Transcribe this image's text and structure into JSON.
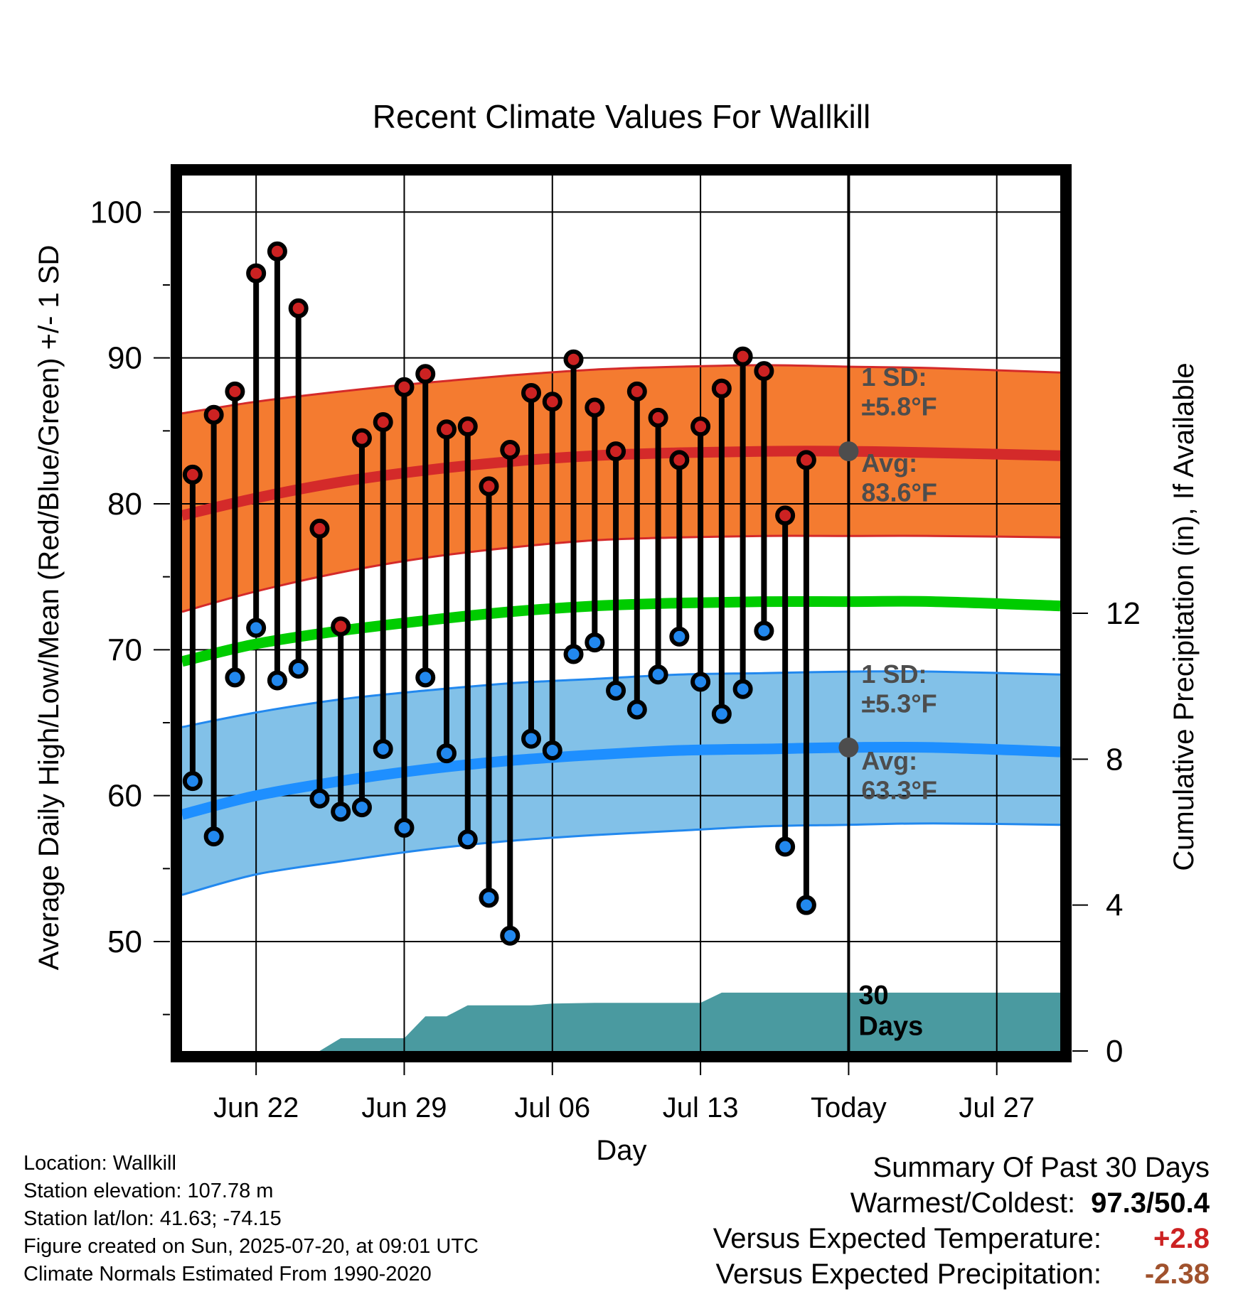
{
  "title": "Recent Climate Values For Wallkill",
  "colors": {
    "high_band_fill": "#f47b30",
    "high_band_edge": "#d42a2a",
    "high_avg_line": "#d42a2a",
    "mean_line": "#00cc00",
    "low_band_fill": "#82c1e8",
    "low_band_edge": "#2288ee",
    "low_avg_line": "#1e8fff",
    "high_marker": "#cc2222",
    "low_marker": "#2288ee",
    "precip_fill": "#4a9aa0",
    "avg_marker": "#4d4d4d",
    "annotation_text": "#4d4d4d",
    "temp_anomaly": "#cc2222",
    "precip_anomaly": "#a0522d"
  },
  "chart_data": {
    "type": "scatter",
    "title": "Recent Climate Values For Wallkill",
    "xlabel": "Day",
    "ylabel": "Average Daily High/Low/Mean (Red/Blue/Green) +/- 1 SD",
    "y2label": "Cumulative Precipitation (in), If Available",
    "ylim": [
      42.5,
      102.5
    ],
    "y2lim": [
      0,
      24
    ],
    "xlim": [
      "2025-06-18T12:00",
      "2025-07-30"
    ],
    "x_tick_labels": [
      {
        "date": "2025-06-22",
        "label": "Jun 22"
      },
      {
        "date": "2025-06-29",
        "label": "Jun 29"
      },
      {
        "date": "2025-07-06",
        "label": "Jul 06"
      },
      {
        "date": "2025-07-13",
        "label": "Jul 13"
      },
      {
        "date": "2025-07-20",
        "label": "Today"
      },
      {
        "date": "2025-07-27",
        "label": "Jul 27"
      }
    ],
    "y_ticks": [
      50,
      60,
      70,
      80,
      90,
      100
    ],
    "y2_ticks": [
      0,
      4,
      8,
      12
    ],
    "grid": true,
    "today": "2025-07-20",
    "today_label": "30\nDays",
    "daily_observations": [
      {
        "date": "2025-06-19",
        "high": 82.0,
        "low": 61.0
      },
      {
        "date": "2025-06-20",
        "high": 86.1,
        "low": 57.2
      },
      {
        "date": "2025-06-21",
        "high": 87.7,
        "low": 68.1
      },
      {
        "date": "2025-06-22",
        "high": 95.8,
        "low": 71.5
      },
      {
        "date": "2025-06-23",
        "high": 97.3,
        "low": 67.9
      },
      {
        "date": "2025-06-24",
        "high": 93.4,
        "low": 68.7
      },
      {
        "date": "2025-06-25",
        "high": 78.3,
        "low": 59.8
      },
      {
        "date": "2025-06-26",
        "high": 71.6,
        "low": 58.9
      },
      {
        "date": "2025-06-27",
        "high": 84.5,
        "low": 59.2
      },
      {
        "date": "2025-06-28",
        "high": 85.6,
        "low": 63.2
      },
      {
        "date": "2025-06-29",
        "high": 88.0,
        "low": 57.8
      },
      {
        "date": "2025-06-30",
        "high": 88.9,
        "low": 68.1
      },
      {
        "date": "2025-07-01",
        "high": 85.1,
        "low": 62.9
      },
      {
        "date": "2025-07-02",
        "high": 85.3,
        "low": 57.0
      },
      {
        "date": "2025-07-03",
        "high": 81.2,
        "low": 53.0
      },
      {
        "date": "2025-07-04",
        "high": 83.7,
        "low": 50.4
      },
      {
        "date": "2025-07-05",
        "high": 87.6,
        "low": 63.9
      },
      {
        "date": "2025-07-06",
        "high": 87.0,
        "low": 63.1
      },
      {
        "date": "2025-07-07",
        "high": 89.9,
        "low": 69.7
      },
      {
        "date": "2025-07-08",
        "high": 86.6,
        "low": 70.5
      },
      {
        "date": "2025-07-09",
        "high": 83.6,
        "low": 67.2
      },
      {
        "date": "2025-07-10",
        "high": 87.7,
        "low": 65.9
      },
      {
        "date": "2025-07-11",
        "high": 85.9,
        "low": 68.3
      },
      {
        "date": "2025-07-12",
        "high": 83.0,
        "low": 70.9
      },
      {
        "date": "2025-07-13",
        "high": 85.3,
        "low": 67.8
      },
      {
        "date": "2025-07-14",
        "high": 87.9,
        "low": 65.6
      },
      {
        "date": "2025-07-15",
        "high": 90.1,
        "low": 67.3
      },
      {
        "date": "2025-07-16",
        "high": 89.1,
        "low": 71.3
      },
      {
        "date": "2025-07-17",
        "high": 79.2,
        "low": 56.5
      },
      {
        "date": "2025-07-18",
        "high": 83.0,
        "low": 52.5
      }
    ],
    "normals": {
      "dates": [
        "2025-06-18T12:00",
        "2025-06-22",
        "2025-06-26",
        "2025-06-30",
        "2025-07-04",
        "2025-07-08",
        "2025-07-12",
        "2025-07-16",
        "2025-07-20",
        "2025-07-24",
        "2025-07-30"
      ],
      "high_avg": [
        79.2,
        80.4,
        81.5,
        82.3,
        82.9,
        83.3,
        83.5,
        83.6,
        83.6,
        83.5,
        83.3
      ],
      "high_sd_upper": [
        86.2,
        87.0,
        87.7,
        88.3,
        88.8,
        89.2,
        89.4,
        89.5,
        89.4,
        89.3,
        89.0
      ],
      "high_sd_lower": [
        72.6,
        74.0,
        75.3,
        76.3,
        77.0,
        77.5,
        77.7,
        77.8,
        77.8,
        77.8,
        77.7
      ],
      "mean": [
        69.2,
        70.4,
        71.3,
        72.0,
        72.6,
        73.0,
        73.2,
        73.3,
        73.3,
        73.3,
        73.0
      ],
      "low_avg": [
        58.7,
        60.0,
        61.0,
        61.8,
        62.4,
        62.8,
        63.1,
        63.2,
        63.3,
        63.3,
        63.0
      ],
      "low_sd_upper": [
        64.7,
        65.7,
        66.6,
        67.2,
        67.7,
        68.0,
        68.3,
        68.4,
        68.5,
        68.5,
        68.3
      ],
      "low_sd_lower": [
        53.2,
        54.6,
        55.5,
        56.3,
        56.9,
        57.3,
        57.6,
        57.9,
        58.0,
        58.1,
        58.0
      ]
    },
    "precipitation_cumulative": {
      "dates": [
        "2025-06-18T12:00",
        "2025-06-25",
        "2025-06-26",
        "2025-06-29",
        "2025-06-30",
        "2025-07-01",
        "2025-07-02",
        "2025-07-05",
        "2025-07-06",
        "2025-07-08",
        "2025-07-13",
        "2025-07-14",
        "2025-07-30"
      ],
      "values": [
        0,
        0,
        0.35,
        0.35,
        0.95,
        0.95,
        1.25,
        1.25,
        1.3,
        1.32,
        1.32,
        1.6,
        1.6
      ]
    },
    "annotations": {
      "high_sd": "1 SD:\n±5.8°F",
      "high_avg": "Avg:\n83.6°F",
      "low_sd": "1 SD:\n±5.3°F",
      "low_avg": "Avg:\n63.3°F",
      "high_avg_value": 83.6,
      "low_avg_value": 63.3
    }
  },
  "info": {
    "location": "Location: Wallkill",
    "elevation": "Station elevation: 107.78 m",
    "latlon": "Station lat/lon: 41.63; -74.15",
    "created": "Figure created on Sun, 2025-07-20, at 09:01 UTC",
    "normals": "Climate Normals Estimated From 1990-2020"
  },
  "summary": {
    "heading": "Summary Of Past 30 Days",
    "warm_cold_label": "Warmest/Coldest:",
    "warm_cold_value": "97.3/50.4",
    "temp_label": "Versus Expected Temperature:",
    "temp_value": "+2.8",
    "precip_label": "Versus Expected Precipitation:",
    "precip_value": "-2.38"
  }
}
